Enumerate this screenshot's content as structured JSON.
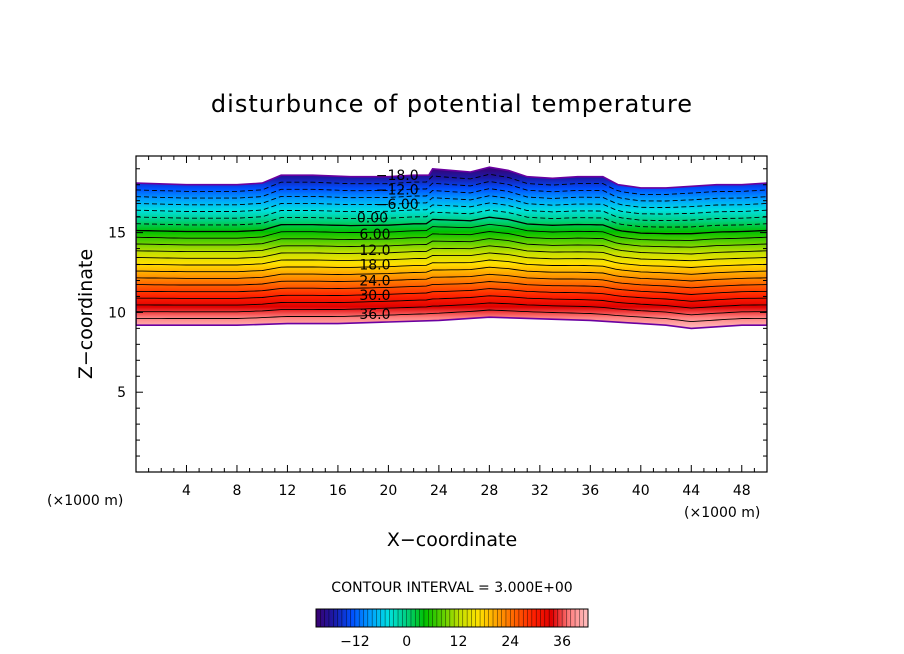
{
  "chart_data": {
    "type": "contour",
    "title": "disturbunce of potential temperature",
    "xlabel": "X−coordinate",
    "ylabel": "Z−coordinate",
    "x_unit_label": "(×1000 m)",
    "y_unit_label": "(×1000 m)",
    "xlim": [
      0,
      50
    ],
    "ylim": [
      0,
      19.8
    ],
    "x_ticks": [
      4,
      8,
      12,
      16,
      20,
      24,
      28,
      32,
      36,
      40,
      44,
      48
    ],
    "x_tick_labels": [
      "4",
      "8",
      "12",
      "16",
      "20",
      "24",
      "28",
      "32",
      "36",
      "40",
      "44",
      "48"
    ],
    "y_ticks": [
      5,
      10,
      15
    ],
    "y_tick_labels": [
      "5",
      "10",
      "15"
    ],
    "contour_interval_text": "CONTOUR INTERVAL = 3.000E+00",
    "contour_interval": 3,
    "level_range": [
      -18,
      42
    ],
    "contour_labels": [
      {
        "text": "−18.0",
        "value": -18,
        "x": 19,
        "z": 18.6
      },
      {
        "text": "−12.0",
        "value": -12,
        "x": 19,
        "z": 17.7
      },
      {
        "text": "−6.00",
        "value": -6,
        "x": 19,
        "z": 16.8
      },
      {
        "text": "0.00",
        "value": 0,
        "x": 17.5,
        "z": 15.95
      },
      {
        "text": "6.00",
        "value": 6,
        "x": 17.7,
        "z": 14.9
      },
      {
        "text": "12.0",
        "value": 12,
        "x": 17.7,
        "z": 13.9
      },
      {
        "text": "18.0",
        "value": 18,
        "x": 17.7,
        "z": 13.0
      },
      {
        "text": "24.0",
        "value": 24,
        "x": 17.7,
        "z": 12.0
      },
      {
        "text": "30.0",
        "value": 30,
        "x": 17.7,
        "z": 11.1
      },
      {
        "text": "36.0",
        "value": 36,
        "x": 17.7,
        "z": 9.9
      }
    ],
    "top_boundary": [
      [
        0,
        18.1
      ],
      [
        4,
        18.0
      ],
      [
        8,
        18.0
      ],
      [
        10,
        18.1
      ],
      [
        11.5,
        18.6
      ],
      [
        14,
        18.6
      ],
      [
        17,
        18.5
      ],
      [
        20,
        18.5
      ],
      [
        22,
        18.6
      ],
      [
        23.2,
        18.6
      ],
      [
        23.5,
        19.0
      ],
      [
        25,
        18.9
      ],
      [
        26.5,
        18.8
      ],
      [
        28,
        19.1
      ],
      [
        29.5,
        18.9
      ],
      [
        31,
        18.5
      ],
      [
        33,
        18.4
      ],
      [
        35,
        18.5
      ],
      [
        37,
        18.5
      ],
      [
        38.2,
        18.0
      ],
      [
        40,
        17.8
      ],
      [
        42,
        17.8
      ],
      [
        44,
        17.9
      ],
      [
        46,
        18.0
      ],
      [
        48,
        18.0
      ],
      [
        50,
        18.1
      ]
    ],
    "bottom_boundary": [
      [
        0,
        9.2
      ],
      [
        4,
        9.2
      ],
      [
        8,
        9.2
      ],
      [
        12,
        9.3
      ],
      [
        16,
        9.3
      ],
      [
        20,
        9.4
      ],
      [
        24,
        9.5
      ],
      [
        28,
        9.7
      ],
      [
        32,
        9.6
      ],
      [
        36,
        9.5
      ],
      [
        40,
        9.3
      ],
      [
        42,
        9.2
      ],
      [
        44,
        9.0
      ],
      [
        46,
        9.1
      ],
      [
        48,
        9.2
      ],
      [
        50,
        9.2
      ]
    ],
    "colorbar": {
      "tick_values": [
        -12,
        0,
        12,
        24,
        36
      ],
      "tick_labels": [
        "−12",
        "0",
        "12",
        "24",
        "36"
      ],
      "range": [
        -21,
        42
      ],
      "colors_low_to_high": [
        "#3a0070",
        "#1a1aa8",
        "#0050ff",
        "#00a0ff",
        "#00e0e0",
        "#00d080",
        "#00c000",
        "#60d000",
        "#c8e000",
        "#ffe000",
        "#ffa000",
        "#ff6000",
        "#ff2000",
        "#e00000",
        "#ff8080",
        "#ffc0c0"
      ]
    }
  }
}
